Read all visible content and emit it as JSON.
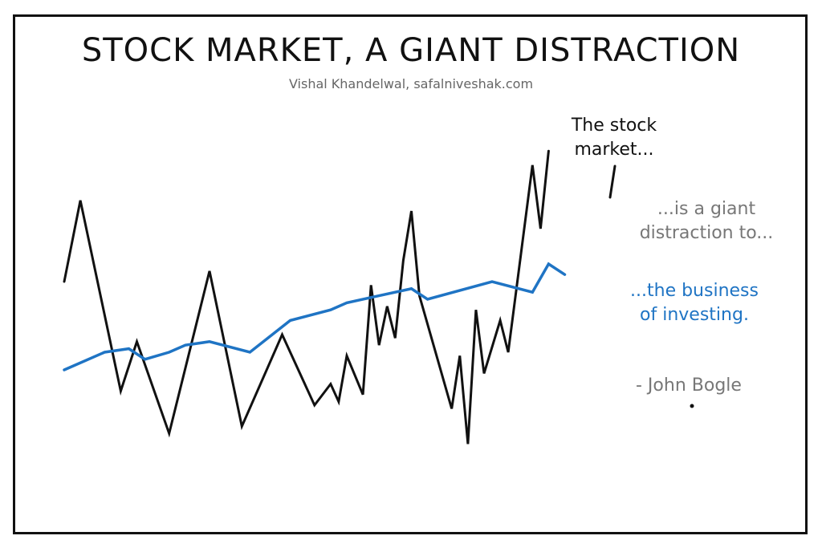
{
  "chart_data": {
    "type": "line",
    "title": "STOCK MARKET, A GIANT DISTRACTION",
    "subtitle": "Vishal Khandelwal, safalniveshak.com",
    "xlim": [
      0,
      70
    ],
    "ylim": [
      0,
      100
    ],
    "grid": false,
    "series": [
      {
        "color": "#111111",
        "x": [
          0,
          2,
          7,
          9,
          13,
          18,
          22,
          27,
          31,
          33,
          34,
          35,
          37,
          38,
          39,
          40,
          41,
          42,
          43,
          44,
          48,
          49,
          50,
          51,
          52,
          54,
          55,
          58,
          59,
          60
        ],
        "y": [
          60,
          83,
          29,
          43,
          17,
          63,
          19,
          45,
          25,
          31,
          26,
          39,
          28,
          59,
          42,
          53,
          44,
          66,
          80,
          56,
          24,
          39,
          14,
          52,
          34,
          49,
          40,
          93,
          75,
          97
        ]
      },
      {
        "color": "#1f74c4",
        "x": [
          0,
          5,
          8,
          10,
          13,
          15,
          18,
          23,
          28,
          33,
          35,
          39,
          43,
          45,
          53,
          58,
          60,
          62
        ],
        "y": [
          35,
          40,
          41,
          38,
          40,
          42,
          43,
          40,
          49,
          52,
          54,
          56,
          58,
          55,
          60,
          57,
          65,
          62
        ]
      }
    ],
    "annotations": [
      {
        "id": "market",
        "lines": [
          "The stock",
          "market..."
        ]
      },
      {
        "id": "distraction",
        "lines": [
          "...is a giant",
          "distraction to..."
        ]
      },
      {
        "id": "business",
        "lines": [
          "...the business",
          "of investing."
        ]
      },
      {
        "id": "author",
        "lines": [
          "- John Bogle"
        ]
      }
    ]
  }
}
